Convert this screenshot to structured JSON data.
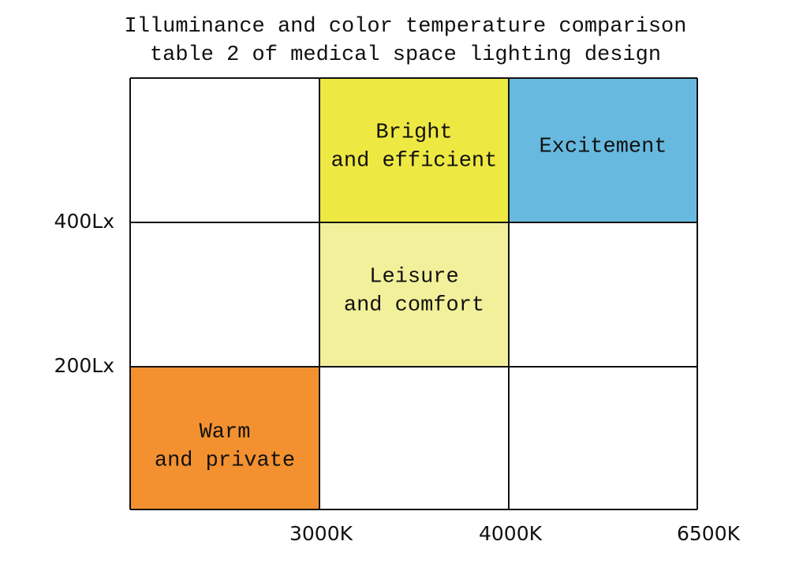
{
  "title": {
    "lines": [
      "Illuminance and color temperature comparison",
      "table 2 of medical space lighting design"
    ]
  },
  "y_labels": [
    "400Lx",
    "200Lx"
  ],
  "x_labels": [
    "3000K",
    "4000K",
    "6500K"
  ],
  "grid": {
    "rows": [
      [
        null,
        {
          "lines": [
            "Bright",
            "and efficient"
          ],
          "color": "#eee843"
        },
        {
          "lines": [
            "Excitement"
          ],
          "color": "#67b9df"
        }
      ],
      [
        null,
        {
          "lines": [
            "Leisure",
            "and comfort"
          ],
          "color": "#f2f09a"
        },
        null
      ],
      [
        {
          "lines": [
            "Warm",
            "and private"
          ],
          "color": "#f39130"
        },
        null,
        null
      ]
    ]
  }
}
